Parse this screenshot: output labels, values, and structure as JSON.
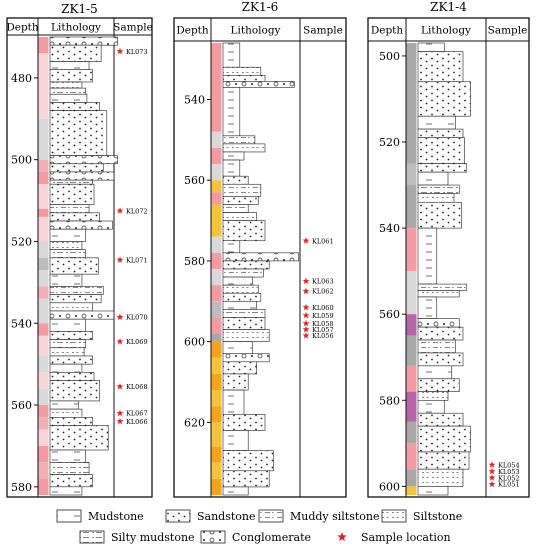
{
  "legend": [
    {
      "key": "mudstone",
      "label": "Mudstone"
    },
    {
      "key": "sandstone",
      "label": "Sandstone"
    },
    {
      "key": "muddy_siltstone",
      "label": "Muddy siltstone"
    },
    {
      "key": "siltstone",
      "label": "Siltstone"
    },
    {
      "key": "silty_mudstone",
      "label": "Silty mudstone"
    },
    {
      "key": "conglomerate",
      "label": "Conglomerate"
    },
    {
      "key": "sample",
      "label": "Sample location"
    }
  ],
  "colors": {
    "star": "#e0222a",
    "log_palette": [
      "#f49aa3",
      "#f2b0b5",
      "#d9d9d9",
      "#bdbdbd",
      "#a8a8a8",
      "#f3c33c",
      "#f7a21b",
      "#e9c8d1",
      "#b565a7",
      "#f6d6d9"
    ]
  },
  "columns": [
    {
      "id": "zk1-5",
      "title": "ZK1-5",
      "headers": {
        "depth": "Depth",
        "lithology": "Lithology",
        "sample": "Sample"
      },
      "depth_range": [
        470,
        582
      ],
      "ticks": [
        480,
        500,
        520,
        540,
        560,
        580
      ],
      "samples": [
        {
          "label": "KL073",
          "depth": 473.5
        },
        {
          "label": "KL072",
          "depth": 512.5
        },
        {
          "label": "KL071",
          "depth": 524.5
        },
        {
          "label": "KL070",
          "depth": 538.5
        },
        {
          "label": "KL069",
          "depth": 544.5
        },
        {
          "label": "KL068",
          "depth": 555.5
        },
        {
          "label": "KL067",
          "depth": 562.0
        },
        {
          "label": "KL066",
          "depth": 564.0
        }
      ],
      "log_bands": [
        [
          470,
          474,
          0
        ],
        [
          474,
          490,
          9
        ],
        [
          490,
          500,
          2
        ],
        [
          500,
          503,
          1
        ],
        [
          503,
          506,
          0
        ],
        [
          506,
          512,
          9
        ],
        [
          512,
          514,
          0
        ],
        [
          514,
          520,
          9
        ],
        [
          520,
          524,
          2
        ],
        [
          524,
          527,
          3
        ],
        [
          527,
          531,
          2
        ],
        [
          531,
          534,
          1
        ],
        [
          534,
          540,
          2
        ],
        [
          540,
          543,
          0
        ],
        [
          543,
          548,
          9
        ],
        [
          548,
          552,
          2
        ],
        [
          552,
          556,
          9
        ],
        [
          556,
          560,
          2
        ],
        [
          560,
          563,
          0
        ],
        [
          563,
          566,
          1
        ],
        [
          566,
          570,
          9
        ],
        [
          570,
          574,
          0
        ],
        [
          574,
          578,
          1
        ],
        [
          578,
          582,
          0
        ]
      ],
      "beds": [
        [
          470,
          472,
          "conglomerate",
          0.95
        ],
        [
          472,
          476,
          "sandstone",
          0.72
        ],
        [
          476,
          478,
          "mudstone",
          0.55
        ],
        [
          478,
          481,
          "sandstone",
          0.6
        ],
        [
          481,
          482.5,
          "siltstone",
          0.45
        ],
        [
          482.5,
          484,
          "silty_mudstone",
          0.5
        ],
        [
          484,
          486,
          "mudstone",
          0.52
        ],
        [
          486,
          488,
          "sandstone",
          0.7
        ],
        [
          488,
          499,
          "sandstone",
          0.8
        ],
        [
          499,
          501,
          "conglomerate",
          0.95
        ],
        [
          501,
          503,
          "sandstone",
          0.75
        ],
        [
          503,
          505,
          "conglomerate",
          0.9
        ],
        [
          505,
          506,
          "silty_mudstone",
          0.6
        ],
        [
          506,
          511,
          "sandstone",
          0.62
        ],
        [
          511,
          513,
          "muddy_siltstone",
          0.55
        ],
        [
          513,
          515,
          "sandstone",
          0.7
        ],
        [
          515,
          517,
          "conglomerate",
          0.88
        ],
        [
          517,
          520,
          "mudstone",
          0.5
        ],
        [
          520,
          522,
          "siltstone",
          0.45
        ],
        [
          522,
          524,
          "silty_mudstone",
          0.5
        ],
        [
          524,
          528,
          "sandstone",
          0.68
        ],
        [
          528,
          531,
          "mudstone",
          0.45
        ],
        [
          531,
          533,
          "muddy_siltstone",
          0.75
        ],
        [
          533,
          535,
          "sandstone",
          0.72
        ],
        [
          535,
          537,
          "siltstone",
          0.6
        ],
        [
          537,
          539,
          "conglomerate",
          0.9
        ],
        [
          539,
          542,
          "mudstone",
          0.5
        ],
        [
          542,
          544,
          "sandstone",
          0.6
        ],
        [
          544,
          546,
          "silty_mudstone",
          0.5
        ],
        [
          546,
          548,
          "siltstone",
          0.48
        ],
        [
          548,
          550,
          "sandstone",
          0.6
        ],
        [
          550,
          552,
          "mudstone",
          0.45
        ],
        [
          552,
          554,
          "sandstone",
          0.62
        ],
        [
          554,
          559,
          "sandstone",
          0.7
        ],
        [
          559,
          561,
          "mudstone",
          0.4
        ],
        [
          561,
          563,
          "siltstone",
          0.45
        ],
        [
          563,
          565,
          "sandstone",
          0.6
        ],
        [
          565,
          571,
          "sandstone",
          0.82
        ],
        [
          571,
          574,
          "mudstone",
          0.5
        ],
        [
          574,
          577,
          "silty_mudstone",
          0.55
        ],
        [
          577,
          580,
          "sandstone",
          0.6
        ],
        [
          580,
          582,
          "mudstone",
          0.45
        ]
      ]
    },
    {
      "id": "zk1-6",
      "title": "ZK1-6",
      "headers": {
        "depth": "Depth",
        "lithology": "Lithology",
        "sample": "Sample"
      },
      "depth_range": [
        526,
        638
      ],
      "ticks": [
        540,
        560,
        580,
        600,
        620
      ],
      "samples": [
        {
          "label": "KL061",
          "depth": 575.0
        },
        {
          "label": "KL063",
          "depth": 585.0
        },
        {
          "label": "KL062",
          "depth": 587.5
        },
        {
          "label": "KL060",
          "depth": 591.5
        },
        {
          "label": "KL059",
          "depth": 593.5
        },
        {
          "label": "KL058",
          "depth": 595.5
        },
        {
          "label": "KL057",
          "depth": 597.0
        },
        {
          "label": "KL056",
          "depth": 598.5
        }
      ],
      "log_bands": [
        [
          526,
          548,
          0
        ],
        [
          548,
          552,
          2
        ],
        [
          552,
          556,
          0
        ],
        [
          556,
          560,
          2
        ],
        [
          560,
          563,
          5
        ],
        [
          563,
          566,
          0
        ],
        [
          566,
          574,
          5
        ],
        [
          574,
          578,
          2
        ],
        [
          578,
          582,
          0
        ],
        [
          582,
          586,
          2
        ],
        [
          586,
          590,
          0
        ],
        [
          590,
          594,
          3
        ],
        [
          594,
          598,
          0
        ],
        [
          598,
          600,
          4
        ],
        [
          600,
          604,
          6
        ],
        [
          604,
          608,
          5
        ],
        [
          608,
          612,
          6
        ],
        [
          612,
          616,
          5
        ],
        [
          616,
          620,
          6
        ],
        [
          620,
          626,
          5
        ],
        [
          626,
          630,
          6
        ],
        [
          630,
          634,
          5
        ],
        [
          634,
          638,
          6
        ]
      ],
      "beds": [
        [
          526,
          532,
          "mudstone",
          0.2
        ],
        [
          532,
          534,
          "siltstone",
          0.45
        ],
        [
          534,
          535.5,
          "sandstone",
          0.5
        ],
        [
          535.5,
          537,
          "conglomerate",
          0.85
        ],
        [
          537,
          549,
          "mudstone",
          0.2
        ],
        [
          549,
          551,
          "muddy_siltstone",
          0.38
        ],
        [
          551,
          553,
          "siltstone",
          0.5
        ],
        [
          553,
          555,
          "mudstone",
          0.25
        ],
        [
          555,
          559,
          "mudstone",
          0.2
        ],
        [
          559,
          561,
          "sandstone",
          0.3
        ],
        [
          561,
          564,
          "muddy_siltstone",
          0.45
        ],
        [
          564,
          566,
          "sandstone",
          0.42
        ],
        [
          566,
          568,
          "silty_mudstone",
          0.3
        ],
        [
          568,
          570,
          "siltstone",
          0.4
        ],
        [
          570,
          575,
          "sandstone",
          0.5
        ],
        [
          575,
          578,
          "mudstone",
          0.2
        ],
        [
          578,
          580,
          "conglomerate",
          0.9
        ],
        [
          580,
          582,
          "sandstone",
          0.55
        ],
        [
          582,
          584,
          "muddy_siltstone",
          0.48
        ],
        [
          584,
          586,
          "mudstone",
          0.35
        ],
        [
          586,
          588,
          "siltstone",
          0.42
        ],
        [
          588,
          590,
          "sandstone",
          0.45
        ],
        [
          590,
          592,
          "mudstone",
          0.4
        ],
        [
          592,
          594,
          "silty_mudstone",
          0.5
        ],
        [
          594,
          597,
          "sandstone",
          0.5
        ],
        [
          597,
          600,
          "siltstone",
          0.55
        ],
        [
          600,
          603,
          "mudstone",
          0.35
        ],
        [
          603,
          605,
          "conglomerate",
          0.55
        ],
        [
          605,
          608,
          "sandstone",
          0.4
        ],
        [
          608,
          612,
          "sandstone",
          0.3
        ],
        [
          612,
          618,
          "mudstone",
          0.25
        ],
        [
          618,
          622,
          "sandstone",
          0.5
        ],
        [
          622,
          627,
          "mudstone",
          0.3
        ],
        [
          627,
          632,
          "sandstone",
          0.6
        ],
        [
          632,
          636,
          "sandstone",
          0.55
        ],
        [
          636,
          638,
          "mudstone",
          0.3
        ]
      ]
    },
    {
      "id": "zk1-4",
      "title": "ZK1-4",
      "headers": {
        "depth": "Depth",
        "lithology": "Lithology",
        "sample": "Sample"
      },
      "depth_range": [
        497,
        602
      ],
      "ticks": [
        500,
        520,
        540,
        560,
        580,
        600
      ],
      "samples": [
        {
          "label": "KL054",
          "depth": 595.0
        },
        {
          "label": "KL053",
          "depth": 596.5
        },
        {
          "label": "KL052",
          "depth": 598.0
        },
        {
          "label": "KL051",
          "depth": 599.5
        }
      ],
      "log_bands": [
        [
          497,
          525,
          4
        ],
        [
          525,
          530,
          3
        ],
        [
          530,
          540,
          4
        ],
        [
          540,
          550,
          0
        ],
        [
          550,
          560,
          2
        ],
        [
          560,
          565,
          8
        ],
        [
          565,
          572,
          4
        ],
        [
          572,
          578,
          0
        ],
        [
          578,
          585,
          8
        ],
        [
          585,
          590,
          4
        ],
        [
          590,
          596,
          0
        ],
        [
          596,
          600,
          4
        ],
        [
          600,
          602,
          5
        ]
      ],
      "beds": [
        [
          497,
          499,
          "mudstone",
          0.35
        ],
        [
          499,
          506,
          "sandstone",
          0.6
        ],
        [
          506,
          514,
          "sandstone",
          0.7
        ],
        [
          514,
          517,
          "mudstone",
          0.5
        ],
        [
          517,
          519,
          "sandstone",
          0.6
        ],
        [
          519,
          525,
          "sandstone",
          0.62
        ],
        [
          525,
          527,
          "sandstone",
          0.65
        ],
        [
          527,
          530,
          "mudstone",
          0.4
        ],
        [
          530,
          532,
          "silty_mudstone",
          0.55
        ],
        [
          532,
          534,
          "siltstone",
          0.48
        ],
        [
          534,
          540,
          "sandstone",
          0.58
        ],
        [
          540,
          553,
          "mudstone",
          0.25
        ],
        [
          553,
          554.5,
          "muddy_siltstone",
          0.65
        ],
        [
          554.5,
          556,
          "siltstone",
          0.55
        ],
        [
          556,
          561,
          "mudstone",
          0.25
        ],
        [
          561,
          563,
          "conglomerate",
          0.55
        ],
        [
          563,
          566,
          "sandstone",
          0.6
        ],
        [
          566,
          569,
          "muddy_siltstone",
          0.5
        ],
        [
          569,
          572,
          "sandstone",
          0.6
        ],
        [
          572,
          575,
          "mudstone",
          0.45
        ],
        [
          575,
          578,
          "sandstone",
          0.55
        ],
        [
          578,
          580,
          "siltstone",
          0.4
        ],
        [
          580,
          583,
          "mudstone",
          0.35
        ],
        [
          583,
          586,
          "sandstone",
          0.6
        ],
        [
          586,
          592,
          "sandstone",
          0.7
        ],
        [
          592,
          596,
          "sandstone",
          0.68
        ],
        [
          596,
          600,
          "siltstone",
          0.6
        ],
        [
          600,
          602,
          "mudstone",
          0.4
        ]
      ]
    }
  ]
}
